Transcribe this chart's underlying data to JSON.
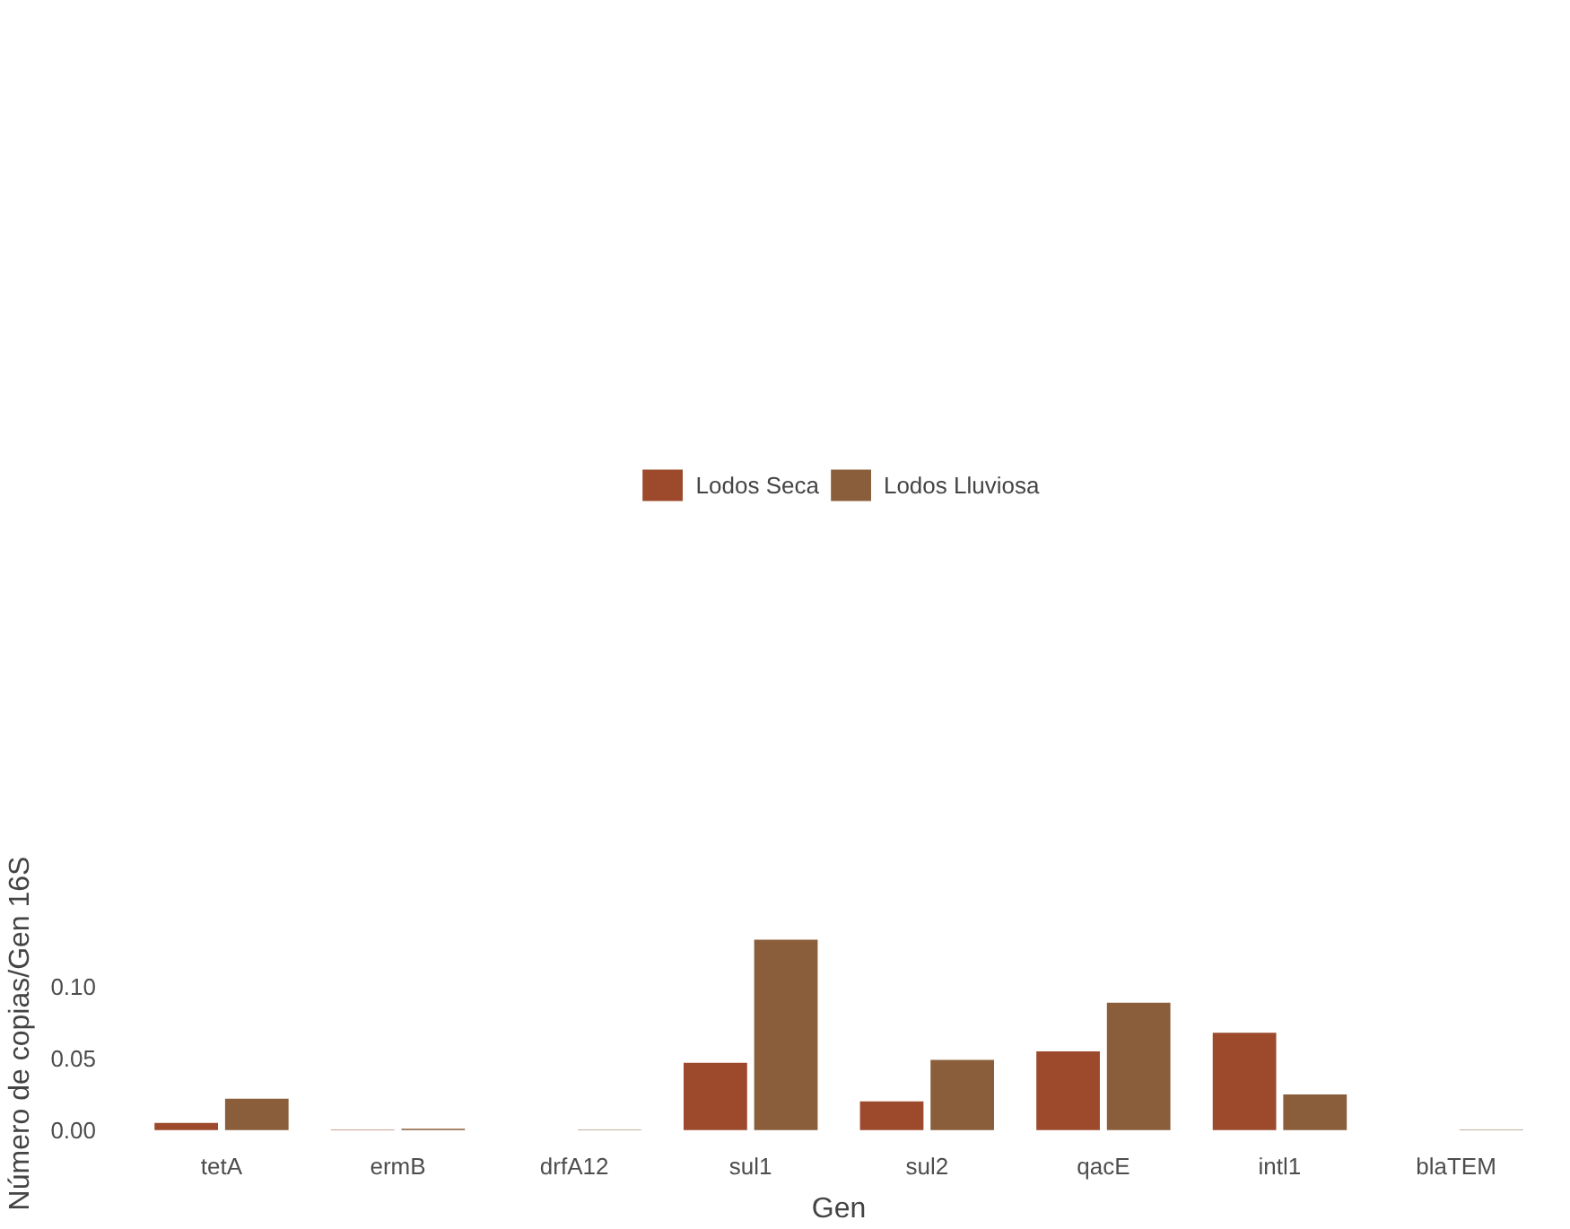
{
  "chart_data": {
    "type": "bar",
    "xlabel": "Gen",
    "ylabel": "Número de copias/Gen 16S",
    "categories": [
      "tetA",
      "ermB",
      "drfA12",
      "sul1",
      "sul2",
      "qacE",
      "intl1",
      "blaTEM"
    ],
    "series": [
      {
        "name": "Lodos Seca",
        "color": "#9c4a2b",
        "values": [
          0.005,
          0.0003,
          0,
          0.047,
          0.02,
          0.055,
          0.068,
          0
        ]
      },
      {
        "name": "Lodos Lluviosa",
        "color": "#8a5e3a",
        "values": [
          0.022,
          0.001,
          0.0003,
          0.133,
          0.049,
          0.089,
          0.025,
          0.0003
        ]
      }
    ],
    "ylim": [
      -0.002,
      0.137
    ],
    "yticks": [
      {
        "value": 0,
        "label": "0.00"
      },
      {
        "value": 0.05,
        "label": "0.05"
      },
      {
        "value": 0.1,
        "label": "0.10"
      }
    ],
    "grid": false,
    "legend": "top"
  }
}
